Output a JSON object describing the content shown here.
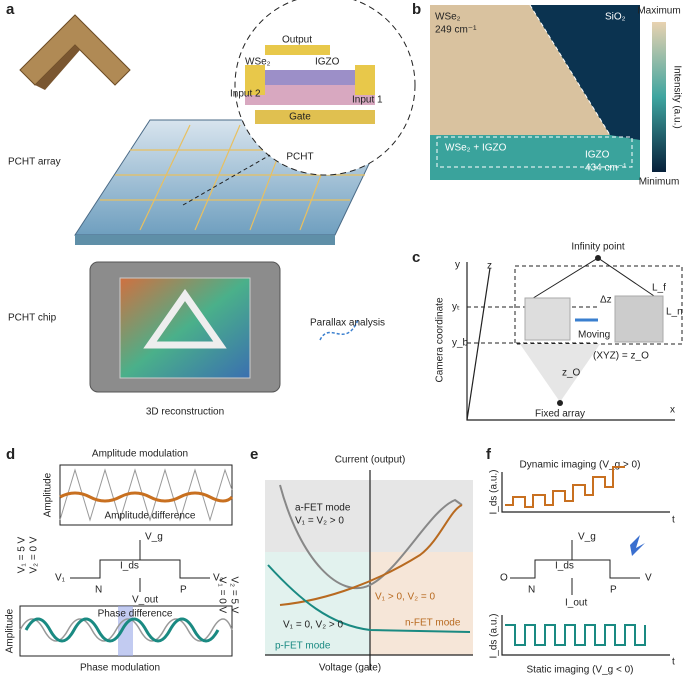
{
  "panel_a": {
    "label": "a",
    "output": "Output",
    "wse2": "WSe₂",
    "igzo": "IGZO",
    "input_2": "Input 2",
    "input_1": "Input 1",
    "gate": "Gate",
    "pcht": "PCHT",
    "pcht_array": "PCHT array",
    "pcht_chip": "PCHT chip",
    "reconstruction": "3D reconstruction",
    "parallax": "Parallax  analysis"
  },
  "panel_b": {
    "label": "b",
    "wse2": "WSe₂",
    "wse2_peak": "249 cm⁻¹",
    "sio2": "SiO₂",
    "mixed": "WSe₂ + IGZO",
    "igzo": "IGZO",
    "igzo_peak": "434 cm⁻¹",
    "maximum": "Maximum",
    "minimum": "Minimum",
    "colorbar_label": "Intensity (a.u.)"
  },
  "panel_c": {
    "label": "c",
    "infinity": "Infinity point",
    "y": "y",
    "z": "z",
    "x": "x",
    "axis_label": "Camera coordinate",
    "yt": "yₜ",
    "yb": "y_b",
    "lf": "L_f",
    "ln": "L_n",
    "dz": "Δz",
    "moving": "Moving",
    "xyz": "(XYZ) = z_O",
    "zo": "z_O",
    "fixed": "Fixed array"
  },
  "panel_d": {
    "label": "d",
    "amp_mod": "Amplitude modulation",
    "amp_axis": "Amplitude",
    "amp_diff": "Amplitude difference",
    "v1_5": "V₁ = 5 V",
    "v2_0": "V₂ = 0 V",
    "vg": "V_g",
    "ids": "I_ds",
    "v1": "V₁",
    "v2": "V₂",
    "n": "N",
    "p": "P",
    "vout": "V_out",
    "v1_0": "V₁ = 0 V",
    "v2_5": "V₂ = 5 V",
    "phase_diff": "Phase difference",
    "amp_axis_2": "Amplitude",
    "phase_mod": "Phase modulation"
  },
  "panel_e": {
    "label": "e",
    "y_axis": "Current (output)",
    "a_fet": "a-FET mode",
    "a_cond": "V₁ = V₂ > 0",
    "n_cond": "V₁ > 0, V₂ = 0",
    "n_fet": "n-FET mode",
    "p_cond": "V₁ = 0, V₂ > 0",
    "p_fet": "p-FET mode",
    "x_axis": "Voltage (gate)"
  },
  "panel_f": {
    "label": "f",
    "dynamic": "Dynamic imaging (V_g > 0)",
    "ids_axis": "I_ds (a.u.)",
    "t": "t",
    "vg": "V_g",
    "ids": "I_ds",
    "o": "O",
    "v": "V",
    "n": "N",
    "p": "P",
    "iout": "I_out",
    "ids_axis_2": "I_ds (a.u.)",
    "t2": "t",
    "static": "Static imaging (V_g < 0)"
  }
}
